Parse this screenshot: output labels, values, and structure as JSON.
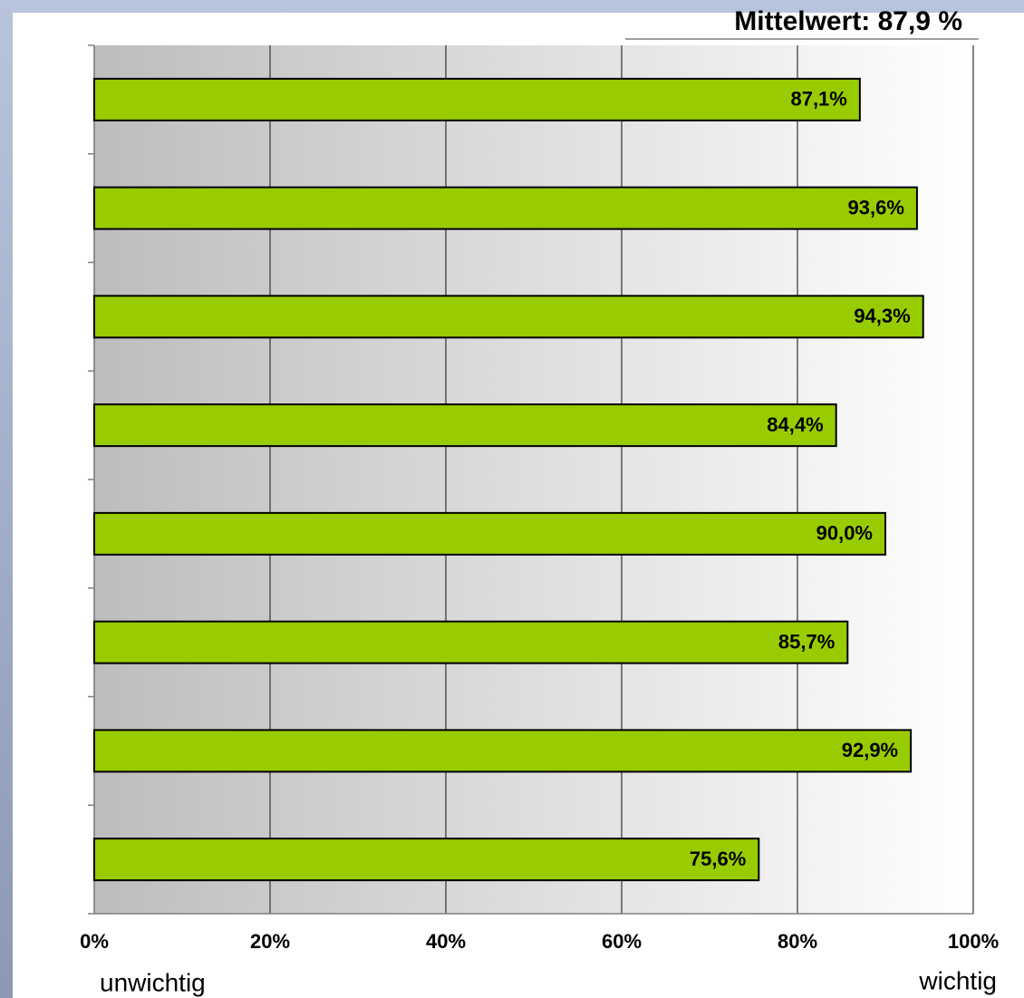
{
  "chart_data": {
    "type": "bar",
    "orientation": "horizontal",
    "title": "Mittelwert: 87,9  %",
    "xlabel_left": "unwichtig",
    "xlabel_right": "wichtig",
    "categories": [
      null,
      null,
      null,
      null,
      null,
      null,
      null,
      null
    ],
    "values": [
      87.1,
      93.6,
      94.3,
      84.4,
      90.0,
      85.7,
      92.9,
      75.6
    ],
    "value_labels": [
      "87,1%",
      "93,6%",
      "94,3%",
      "84,4%",
      "90,0%",
      "85,7%",
      "92,9%",
      "75,6%"
    ],
    "color": "#99cc00",
    "xlim": [
      0,
      100
    ],
    "xticks": [
      {
        "value": 0,
        "label": "0%"
      },
      {
        "value": 20,
        "label": "20%"
      },
      {
        "value": 40,
        "label": "40%"
      },
      {
        "value": 60,
        "label": "60%"
      },
      {
        "value": 80,
        "label": "80%"
      },
      {
        "value": 100,
        "label": "100%"
      }
    ],
    "grid": true
  }
}
